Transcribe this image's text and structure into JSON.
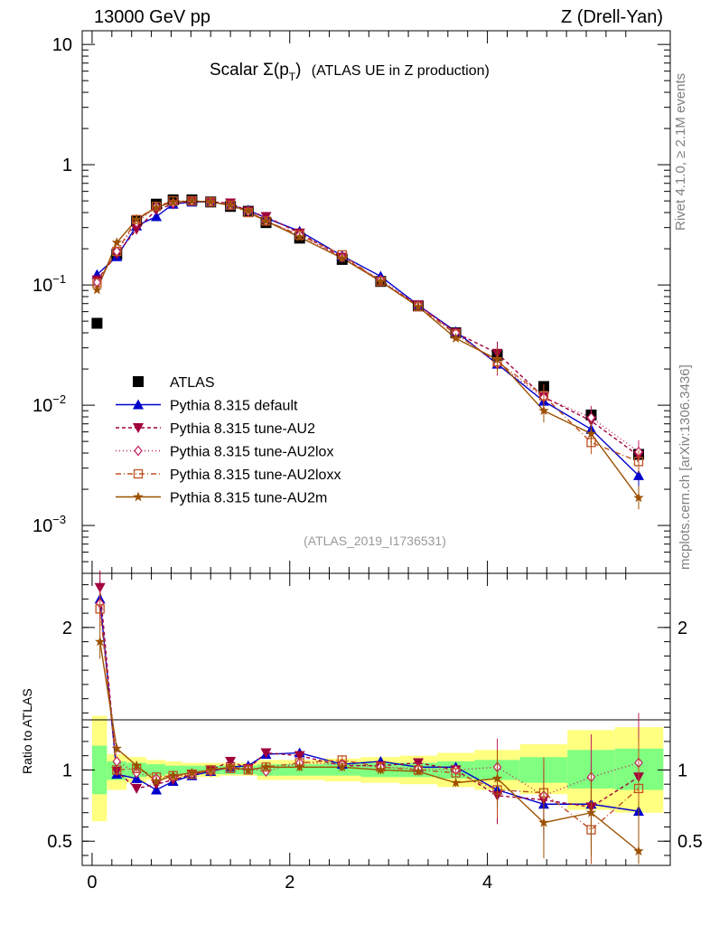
{
  "header": {
    "left": "13000 GeV pp",
    "right": "Z (Drell-Yan)"
  },
  "side": {
    "rivet": "Rivet 4.1.0, ≥ 2.1M events",
    "mcplots": "mcplots.cern.ch [arXiv:1306.3436]"
  },
  "chart_data": [
    {
      "type": "scatter",
      "panel": "main",
      "title_main": "Scalar Σ(p",
      "title_sub": "T",
      "title_close": ")",
      "title_rest": "(ATLAS UE in Z production)",
      "analysis_tag": "(ATLAS_2019_I1736531)",
      "yscale": "log",
      "ylim": [
        0.0004,
        13
      ],
      "xlim": [
        -0.1,
        5.85
      ],
      "y_ticks": [
        {
          "v": 10,
          "label": "10",
          "exp": ""
        },
        {
          "v": 1,
          "label": "1",
          "exp": ""
        },
        {
          "v": 0.1,
          "label": "10",
          "exp": "−1"
        },
        {
          "v": 0.01,
          "label": "10",
          "exp": "−2"
        },
        {
          "v": 0.001,
          "label": "10",
          "exp": "−3"
        }
      ],
      "x": [
        0.05,
        0.25,
        0.45,
        0.65,
        0.82,
        1.01,
        1.2,
        1.4,
        1.58,
        1.76,
        2.1,
        2.53,
        2.92,
        3.3,
        3.68,
        4.1,
        4.57,
        5.05,
        5.53
      ],
      "series": [
        {
          "name": "ATLAS",
          "color": "#000000",
          "marker": "square",
          "dash": "none",
          "values": [
            0.048,
            0.18,
            0.34,
            0.47,
            0.51,
            0.51,
            0.49,
            0.45,
            0.41,
            0.33,
            0.245,
            0.163,
            0.107,
            0.067,
            0.04,
            0.026,
            0.0143,
            0.0083,
            0.0039
          ]
        },
        {
          "name": "Pythia 8.315 default",
          "color": "#0000cc",
          "marker": "triangle-up",
          "dash": "none",
          "values": [
            0.122,
            0.172,
            0.31,
            0.37,
            0.47,
            0.49,
            0.49,
            0.46,
            0.42,
            0.36,
            0.28,
            0.175,
            0.118,
            0.068,
            0.041,
            0.022,
            0.0108,
            0.0063,
            0.0026
          ]
        },
        {
          "name": "Pythia 8.315 tune-AU2",
          "color": "#a0003c",
          "marker": "triangle-down",
          "dash": "4,3",
          "values": [
            0.11,
            0.18,
            0.29,
            0.42,
            0.47,
            0.5,
            0.49,
            0.48,
            0.41,
            0.37,
            0.27,
            0.17,
            0.107,
            0.068,
            0.04,
            0.027,
            0.0117,
            0.0074,
            0.0038
          ]
        },
        {
          "name": "Pythia 8.315 tune-AU2lox",
          "color": "#c02060",
          "marker": "diamond",
          "dash": "1,3",
          "values": [
            0.105,
            0.19,
            0.33,
            0.45,
            0.48,
            0.5,
            0.49,
            0.46,
            0.41,
            0.34,
            0.26,
            0.17,
            0.11,
            0.068,
            0.04,
            0.022,
            0.0116,
            0.0079,
            0.0041
          ]
        },
        {
          "name": "Pythia 8.315 tune-AU2loxx",
          "color": "#c05020",
          "marker": "square-open",
          "dash": "6,3,1,3",
          "values": [
            0.104,
            0.19,
            0.35,
            0.45,
            0.5,
            0.5,
            0.49,
            0.46,
            0.4,
            0.34,
            0.26,
            0.178,
            0.107,
            0.066,
            0.039,
            0.023,
            0.012,
            0.0049,
            0.0034
          ]
        },
        {
          "name": "Pythia 8.315 tune-AU2m",
          "color": "#9c5000",
          "marker": "star",
          "dash": "none",
          "values": [
            0.091,
            0.225,
            0.35,
            0.44,
            0.49,
            0.5,
            0.49,
            0.46,
            0.41,
            0.34,
            0.25,
            0.167,
            0.107,
            0.066,
            0.036,
            0.024,
            0.009,
            0.0058,
            0.0017
          ]
        }
      ]
    },
    {
      "type": "scatter",
      "panel": "ratio",
      "ylabel": "Ratio to ATLAS",
      "ylim": [
        0.33,
        2.38
      ],
      "xlim": [
        -0.1,
        5.85
      ],
      "x_ticks": [
        0,
        2,
        4
      ],
      "x_tick_labels": [
        "0",
        "2",
        "4"
      ],
      "y_ticks": [
        0.5,
        1,
        2
      ],
      "y_tick_labels": [
        "0.5",
        "1",
        "2"
      ],
      "bands": {
        "x_edges": [
          0.0,
          0.15,
          0.35,
          0.55,
          0.74,
          0.91,
          1.11,
          1.3,
          1.49,
          1.67,
          1.85,
          2.35,
          2.72,
          3.11,
          3.49,
          3.87,
          4.33,
          4.81,
          5.29,
          5.78
        ],
        "yellow_lo": [
          0.64,
          0.86,
          0.91,
          0.93,
          0.94,
          0.95,
          0.95,
          0.96,
          0.96,
          0.93,
          0.93,
          0.92,
          0.91,
          0.9,
          0.88,
          0.86,
          0.83,
          0.72,
          0.7
        ],
        "yellow_hi": [
          1.38,
          1.11,
          1.09,
          1.07,
          1.06,
          1.05,
          1.05,
          1.05,
          1.05,
          1.07,
          1.07,
          1.08,
          1.09,
          1.1,
          1.12,
          1.14,
          1.18,
          1.28,
          1.3
        ],
        "green_lo": [
          0.83,
          0.93,
          0.95,
          0.96,
          0.97,
          0.97,
          0.97,
          0.97,
          0.97,
          0.96,
          0.96,
          0.96,
          0.95,
          0.95,
          0.94,
          0.93,
          0.91,
          0.87,
          0.86
        ],
        "green_hi": [
          1.17,
          1.06,
          1.05,
          1.04,
          1.03,
          1.03,
          1.03,
          1.03,
          1.03,
          1.04,
          1.04,
          1.05,
          1.05,
          1.05,
          1.06,
          1.07,
          1.09,
          1.14,
          1.15
        ]
      },
      "x": [
        0.08,
        0.25,
        0.45,
        0.65,
        0.82,
        1.01,
        1.2,
        1.4,
        1.58,
        1.76,
        2.1,
        2.53,
        2.92,
        3.3,
        3.68,
        4.1,
        4.57,
        5.05,
        5.53
      ],
      "series": [
        {
          "name": "Pythia 8.315 default",
          "values": [
            2.2,
            0.97,
            0.94,
            0.86,
            0.92,
            0.96,
            0.99,
            1.02,
            1.03,
            1.11,
            1.12,
            1.04,
            1.06,
            1.02,
            1.02,
            0.86,
            0.76,
            0.76,
            0.71
          ]
        },
        {
          "name": "Pythia 8.315 tune-AU2",
          "values": [
            2.28,
            0.99,
            0.87,
            0.9,
            0.93,
            0.97,
            1.0,
            1.06,
            1.01,
            1.12,
            1.1,
            1.03,
            1.03,
            1.05,
            1.0,
            0.82,
            0.79,
            0.74,
            0.95
          ]
        },
        {
          "name": "Pythia 8.315 tune-AU2lox",
          "values": [
            2.17,
            1.06,
            0.98,
            0.94,
            0.95,
            0.97,
            0.99,
            1.02,
            1.01,
            0.99,
            1.05,
            1.04,
            1.02,
            1.01,
            1.0,
            1.02,
            0.82,
            0.95,
            1.05
          ]
        },
        {
          "name": "Pythia 8.315 tune-AU2loxx",
          "values": [
            2.13,
            1.0,
            1.01,
            0.95,
            0.96,
            0.97,
            1.0,
            1.01,
            1.0,
            1.02,
            1.05,
            1.07,
            1.02,
            1.0,
            0.98,
            0.86,
            0.84,
            0.58,
            0.87
          ]
        },
        {
          "name": "Pythia 8.315 tune-AU2m",
          "values": [
            1.9,
            1.15,
            1.03,
            0.92,
            0.96,
            0.98,
            1.0,
            1.02,
            1.0,
            1.02,
            1.02,
            1.02,
            1.0,
            0.99,
            0.91,
            0.94,
            0.63,
            0.7,
            0.43
          ]
        }
      ]
    }
  ]
}
